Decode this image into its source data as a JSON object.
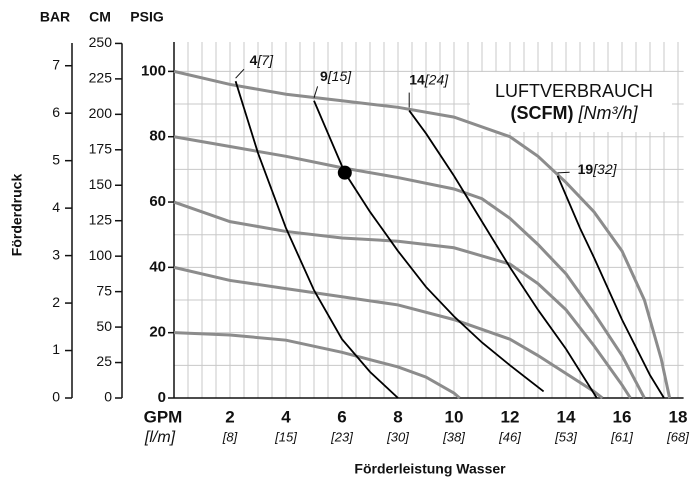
{
  "chart_data": {
    "type": "line",
    "axis_headers": [
      "BAR",
      "CM",
      "PSIG"
    ],
    "y_title": "Förderdruck",
    "x_title": "Förderleistung Wasser",
    "x_unit": "GPM",
    "x_unit_metric": "[l/m]",
    "xlim": [
      0,
      18.2
    ],
    "xticks": [
      2,
      4,
      6,
      8,
      10,
      12,
      14,
      16,
      18
    ],
    "xticks_metric": [
      "[8]",
      "[15]",
      "[23]",
      "[30]",
      "[38]",
      "[46]",
      "[53]",
      "[61]",
      "[68]"
    ],
    "x_grid": [
      0.5,
      1,
      1.5,
      2,
      2.5,
      3,
      3.5,
      4,
      4.5,
      5,
      5.5,
      6,
      6.5,
      7,
      7.5,
      8,
      8.5,
      9,
      9.5,
      10,
      10.5,
      11,
      11.5,
      12,
      12.5,
      13,
      13.5,
      14,
      14.5,
      15,
      15.5,
      16,
      16.5,
      17,
      17.5,
      18
    ],
    "ylim": [
      0,
      109
    ],
    "yticks": [
      0,
      20,
      40,
      60,
      80,
      100
    ],
    "y_grid": [
      10,
      20,
      30,
      40,
      50,
      60,
      70,
      80,
      90,
      100
    ],
    "cmlim": [
      0,
      251
    ],
    "cmticks": [
      0,
      25,
      50,
      75,
      100,
      125,
      150,
      175,
      200,
      225,
      250
    ],
    "barlim": [
      0,
      7.5
    ],
    "barticks": [
      0,
      1,
      2,
      3,
      4,
      5,
      6,
      7
    ],
    "legend_title": "LUFTVERBRAUCH",
    "legend_unit": "(SCFM)",
    "legend_unit_metric": "[Nm³/h]",
    "series": [
      {
        "color": "#8c8c8c",
        "x": [
          0,
          2,
          4,
          6,
          8,
          10,
          12,
          13,
          14,
          15,
          16,
          16.8,
          17.4,
          17.7
        ],
        "values": [
          100,
          96,
          93,
          91,
          89,
          86,
          80,
          74,
          66,
          57,
          45,
          30,
          12,
          0
        ]
      },
      {
        "color": "#8c8c8c",
        "x": [
          0,
          2,
          4,
          6,
          8,
          10,
          11,
          12,
          13,
          14,
          15,
          16,
          16.8
        ],
        "values": [
          80,
          77,
          74,
          70.5,
          67.5,
          64,
          61,
          55,
          47,
          38,
          26,
          13,
          0
        ]
      },
      {
        "color": "#8c8c8c",
        "x": [
          0,
          2,
          4,
          6,
          8,
          10,
          12,
          13,
          14,
          15,
          16,
          16.3
        ],
        "values": [
          60,
          54,
          51,
          49,
          48,
          46,
          41,
          35,
          27,
          16,
          4,
          0
        ]
      },
      {
        "color": "#8c8c8c",
        "x": [
          0,
          2,
          4,
          6,
          8,
          10,
          12,
          13,
          14,
          15,
          15.3
        ],
        "values": [
          40,
          36,
          33.5,
          31,
          28.5,
          24,
          18,
          13,
          7.5,
          2,
          0
        ]
      },
      {
        "color": "#8c8c8c",
        "x": [
          0,
          2,
          4,
          6,
          8,
          9,
          10,
          10.2
        ],
        "values": [
          20,
          19.3,
          17.7,
          14,
          9.5,
          6.4,
          1.5,
          0
        ]
      },
      {
        "color": "#000000",
        "label": "4",
        "label_metric": "[7]",
        "x": [
          2.2,
          3,
          4,
          5,
          6,
          7,
          8
        ],
        "values": [
          97,
          75,
          52,
          33,
          18,
          8,
          0
        ]
      },
      {
        "color": "#000000",
        "label": "9",
        "label_metric": "[15]",
        "x": [
          5,
          6.1,
          7,
          8,
          9,
          10,
          11,
          12,
          13.2
        ],
        "values": [
          91,
          69,
          57,
          45,
          34,
          25,
          17,
          10,
          2
        ]
      },
      {
        "color": "#000000",
        "label": "14",
        "label_metric": "[24]",
        "x": [
          8.4,
          9,
          10,
          11,
          12,
          13,
          14,
          15.1
        ],
        "values": [
          88,
          81,
          68,
          54,
          40,
          27,
          15,
          0
        ]
      },
      {
        "color": "#000000",
        "label": "19",
        "label_metric": "[32]",
        "x": [
          13.7,
          14.5,
          15,
          16,
          17,
          17.5
        ],
        "values": [
          68,
          52,
          43,
          24,
          7,
          0
        ]
      }
    ],
    "point": {
      "x": 6.1,
      "y": 69,
      "color": "#000000"
    }
  }
}
